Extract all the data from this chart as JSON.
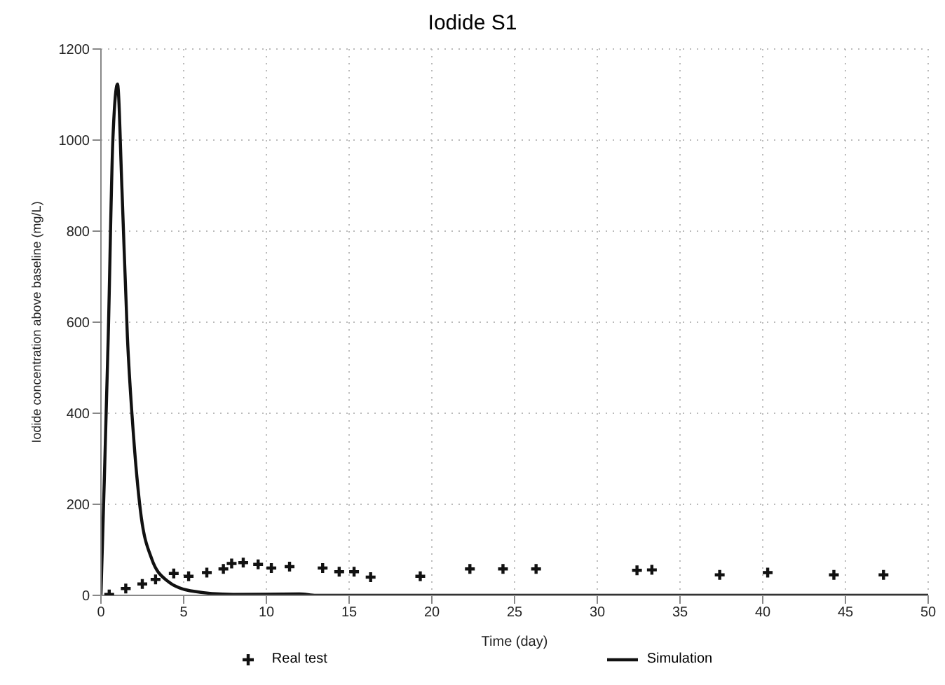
{
  "chart_data": {
    "type": "scatter",
    "title": "Iodide S1",
    "xlabel": "Time (day)",
    "ylabel": "Iodide concentration above baseline (mg/L)",
    "xlim": [
      0,
      50
    ],
    "xticks": [
      0,
      5,
      10,
      15,
      20,
      25,
      30,
      35,
      40,
      45,
      50
    ],
    "ylim": [
      0,
      1200
    ],
    "yticks": [
      0,
      200,
      400,
      600,
      800,
      1000,
      1200
    ],
    "grid": true,
    "legend": "bottom",
    "series": [
      {
        "name": "Real test",
        "marker": "cross",
        "color": "#111111",
        "x": [
          0.5,
          1.5,
          2.5,
          3.3,
          4.4,
          5.3,
          6.4,
          7.4,
          7.9,
          8.6,
          9.5,
          10.3,
          11.4,
          13.4,
          14.4,
          15.3,
          16.3,
          19.3,
          22.3,
          24.3,
          26.3,
          32.4,
          33.3,
          37.4,
          40.3,
          44.3,
          47.3
        ],
        "values": [
          2,
          15,
          25,
          35,
          48,
          42,
          50,
          58,
          70,
          72,
          68,
          60,
          63,
          60,
          52,
          52,
          40,
          42,
          58,
          58,
          58,
          55,
          56,
          45,
          50,
          45,
          45
        ]
      },
      {
        "name": "Simulation",
        "type": "line",
        "marker": "none",
        "line_style": "solid",
        "color": "#111111",
        "x": [
          0,
          0.2,
          0.44,
          0.72,
          1.0,
          1.27,
          1.6,
          1.97,
          2.38,
          3.07,
          4.0,
          5.4,
          8,
          12,
          13,
          20,
          30,
          40,
          50
        ],
        "values": [
          0,
          250,
          567,
          1000,
          1123,
          892,
          567,
          350,
          188,
          80,
          32,
          10,
          2,
          3,
          0,
          0,
          0,
          0,
          0
        ]
      }
    ]
  }
}
